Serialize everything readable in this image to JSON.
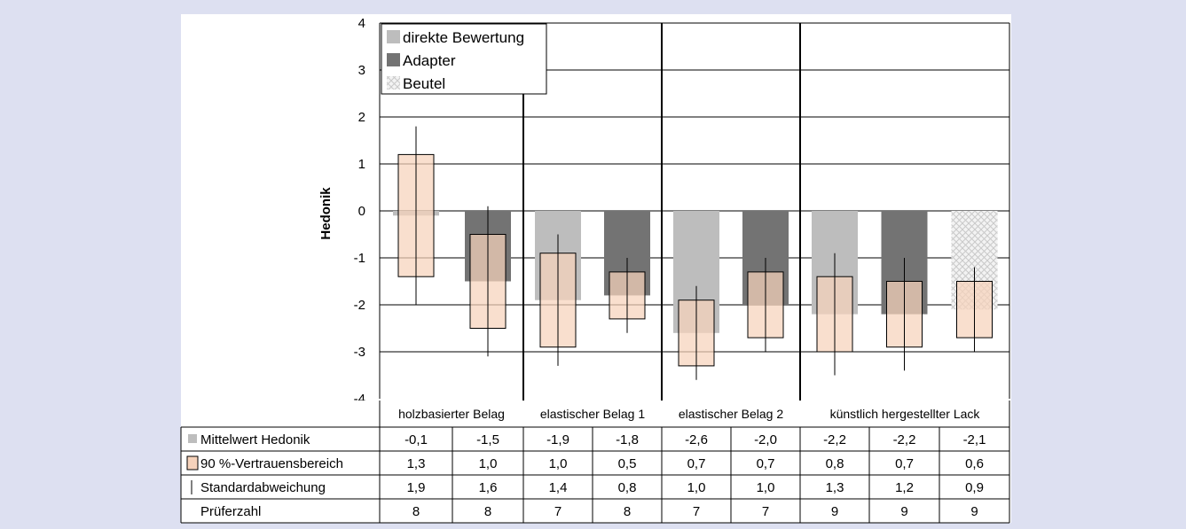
{
  "chart_data": {
    "type": "bar",
    "ylabel": "Hedonik",
    "ylim": [
      -4,
      4
    ],
    "yticks": [
      4,
      3,
      2,
      1,
      0,
      -1,
      -2,
      -3,
      -4
    ],
    "grid": true,
    "legend_position": "top-left",
    "legend": [
      {
        "name": "direkte Bewertung",
        "color": "#bdbdbd"
      },
      {
        "name": "Adapter",
        "color": "#737373"
      },
      {
        "name": "Beutel",
        "color": "#e6e6e6"
      }
    ],
    "groups": [
      "holzbasierter Belag",
      "elastischer Belag 1",
      "elastischer Belag 2",
      "künstlich hergestellter Lack"
    ],
    "bars": [
      {
        "group": 0,
        "method": "direkte Bewertung"
      },
      {
        "group": 0,
        "method": "Adapter"
      },
      {
        "group": 1,
        "method": "direkte Bewertung"
      },
      {
        "group": 1,
        "method": "Adapter"
      },
      {
        "group": 2,
        "method": "direkte Bewertung"
      },
      {
        "group": 2,
        "method": "Adapter"
      },
      {
        "group": 3,
        "method": "direkte Bewertung"
      },
      {
        "group": 3,
        "method": "Adapter"
      },
      {
        "group": 3,
        "method": "Beutel"
      }
    ],
    "confidence_color": "#f6d2bb",
    "table": {
      "rows": [
        {
          "label": "Mittelwert Hedonik",
          "marker": "square",
          "values": [
            "-0,1",
            "-1,5",
            "-1,9",
            "-1,8",
            "-2,6",
            "-2,0",
            "-2,2",
            "-2,2",
            "-2,1"
          ]
        },
        {
          "label": "90 %-Vertrauensbereich",
          "marker": "box",
          "values": [
            "1,3",
            "1,0",
            "1,0",
            "0,5",
            "0,7",
            "0,7",
            "0,8",
            "0,7",
            "0,6"
          ]
        },
        {
          "label": "Standardabweichung",
          "marker": "line",
          "values": [
            "1,9",
            "1,6",
            "1,4",
            "0,8",
            "1,0",
            "1,0",
            "1,3",
            "1,2",
            "0,9"
          ]
        },
        {
          "label": "Prüferzahl",
          "marker": "none",
          "values": [
            "8",
            "8",
            "7",
            "8",
            "7",
            "7",
            "9",
            "9",
            "9"
          ]
        }
      ]
    }
  }
}
